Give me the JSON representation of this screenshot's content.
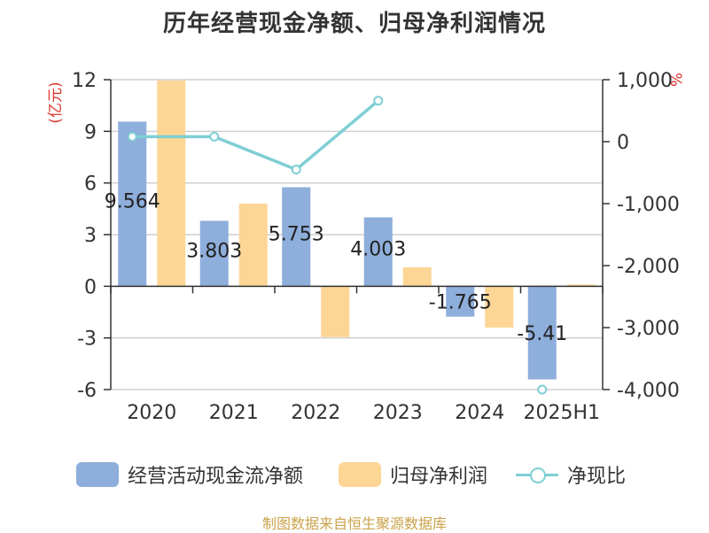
{
  "title": "历年经营现金净额、归母净利润情况",
  "source": "制图数据来自恒生聚源数据库",
  "colors": {
    "cash": "#8eaedb",
    "profit": "#fdd695",
    "ratio": "#7ecfd4",
    "axis_unit": "#d9342b"
  },
  "chart_data": {
    "type": "bar",
    "categories": [
      "2020",
      "2021",
      "2022",
      "2023",
      "2024",
      "2025H1"
    ],
    "left_axis": {
      "label": "(亿元)",
      "ylim": [
        -6,
        12
      ],
      "ticks": [
        "12",
        "9",
        "6",
        "3",
        "0",
        "-3",
        "-6"
      ],
      "tick_values": [
        12,
        9,
        6,
        3,
        0,
        -3,
        -6
      ]
    },
    "right_axis": {
      "label": "%",
      "ylim": [
        -4000,
        1000
      ],
      "ticks": [
        "1,000",
        "0",
        "-1,000",
        "-2,000",
        "-3,000",
        "-4,000"
      ],
      "tick_values": [
        1000,
        0,
        -1000,
        -2000,
        -3000,
        -4000
      ]
    },
    "series": [
      {
        "name": "经营活动现金流净额",
        "type": "bar",
        "axis": "left",
        "values": [
          9.564,
          3.803,
          5.753,
          4.003,
          -1.765,
          -5.41
        ],
        "labels": [
          "9.564",
          "3.803",
          "5.753",
          "4.003",
          "-1.765",
          "-5.41"
        ]
      },
      {
        "name": "归母净利润",
        "type": "bar",
        "axis": "left",
        "values": [
          11.95,
          4.8,
          -2.95,
          1.1,
          -2.4,
          0.1
        ]
      },
      {
        "name": "净现比",
        "type": "line",
        "axis": "right",
        "values": [
          80,
          80,
          -450,
          660,
          null,
          -4000
        ]
      }
    ],
    "grid": true,
    "legend": "bottom"
  }
}
